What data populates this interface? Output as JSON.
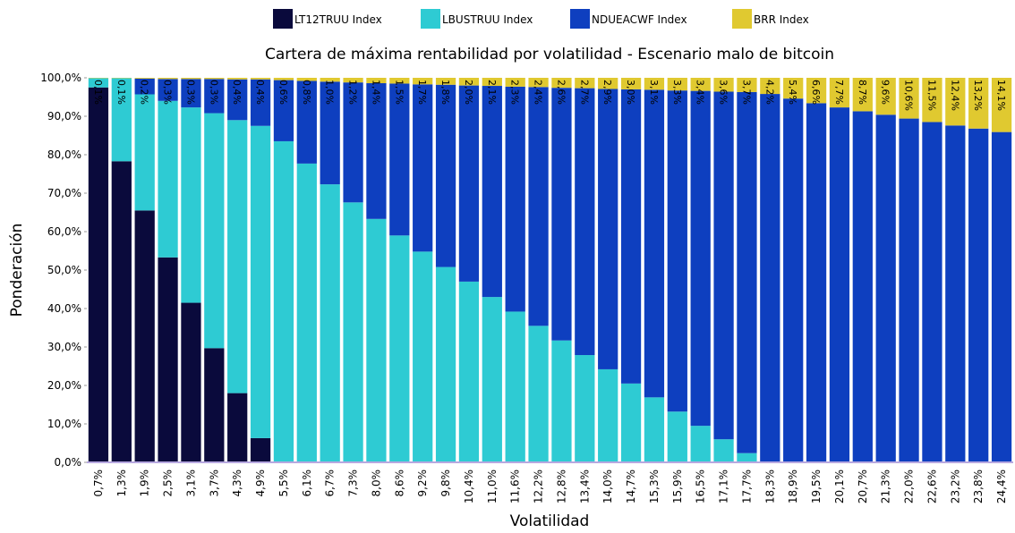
{
  "chart_data": {
    "type": "stacked_bar",
    "title": "Cartera de máxima rentabilidad por volatilidad - Escenario malo de bitcoin",
    "x_label": "Volatilidad",
    "y_label": "Ponderación",
    "categories": [
      "0,7%",
      "1,3%",
      "1,9%",
      "2,5%",
      "3,1%",
      "3,7%",
      "4,3%",
      "4,9%",
      "5,5%",
      "6,1%",
      "6,7%",
      "7,3%",
      "8,0%",
      "8,6%",
      "9,2%",
      "9,8%",
      "10,4%",
      "11,0%",
      "11,6%",
      "12,2%",
      "12,8%",
      "13,4%",
      "14,0%",
      "14,7%",
      "15,3%",
      "15,9%",
      "16,5%",
      "17,1%",
      "17,7%",
      "18,3%",
      "18,9%",
      "19,5%",
      "20,1%",
      "20,7%",
      "21,3%",
      "22,0%",
      "22,6%",
      "23,2%",
      "23,8%",
      "24,4%"
    ],
    "series": [
      {
        "name": "LT12TRUU Index",
        "color": "#0a0a3c",
        "values": [
          97.5,
          78.3,
          65.5,
          53.3,
          41.5,
          29.7,
          18,
          6.3,
          0,
          0,
          0,
          0,
          0,
          0,
          0,
          0,
          0,
          0,
          0,
          0,
          0,
          0,
          0,
          0,
          0,
          0,
          0,
          0,
          0,
          0,
          0,
          0,
          0,
          0,
          0,
          0,
          0,
          0,
          0,
          0
        ]
      },
      {
        "name": "LBUSTRUU Index",
        "color": "#2ecbd3",
        "values": [
          2.4,
          21.6,
          30.2,
          40.7,
          50.8,
          61.1,
          71,
          81.2,
          83.5,
          77.7,
          72.3,
          67.6,
          63.3,
          59,
          54.8,
          50.8,
          47,
          43,
          39.2,
          35.5,
          31.7,
          27.9,
          24.2,
          20.5,
          16.9,
          13.2,
          9.5,
          6,
          2.4,
          0,
          0,
          0,
          0,
          0,
          0,
          0,
          0,
          0,
          0,
          0
        ]
      },
      {
        "name": "NDUEACWF Index",
        "color": "#0e3fbf",
        "values": [
          0,
          0,
          4.1,
          5.7,
          7.4,
          8.9,
          10.6,
          12.1,
          15.9,
          21.5,
          26.7,
          31.2,
          35.3,
          39.5,
          43.5,
          47.4,
          51,
          54.9,
          58.5,
          62.1,
          65.7,
          69.4,
          72.9,
          76.5,
          80,
          83.5,
          87.1,
          90.4,
          93.9,
          95.8,
          94.6,
          93.4,
          92.3,
          91.3,
          90.4,
          89.4,
          88.5,
          87.6,
          86.8,
          85.9
        ]
      },
      {
        "name": "BRR Index",
        "color": "#e0c930",
        "values": [
          0.1,
          0.1,
          0.2,
          0.3,
          0.3,
          0.3,
          0.4,
          0.4,
          0.6,
          0.8,
          1.0,
          1.2,
          1.4,
          1.5,
          1.7,
          1.8,
          2.0,
          2.1,
          2.3,
          2.4,
          2.6,
          2.7,
          2.9,
          3.0,
          3.1,
          3.3,
          3.4,
          3.6,
          3.7,
          4.2,
          5.4,
          6.6,
          7.7,
          8.7,
          9.6,
          10.6,
          11.5,
          12.4,
          13.2,
          14.1
        ],
        "value_labels": [
          "0,1%",
          "0,1%",
          "0,2%",
          "0,3%",
          "0,3%",
          "0,3%",
          "0,4%",
          "0,4%",
          "0,6%",
          "0,8%",
          "1,0%",
          "1,2%",
          "1,4%",
          "1,5%",
          "1,7%",
          "1,8%",
          "2,0%",
          "2,1%",
          "2,3%",
          "2,4%",
          "2,6%",
          "2,7%",
          "2,9%",
          "3,0%",
          "3,1%",
          "3,3%",
          "3,4%",
          "3,6%",
          "3,7%",
          "4,2%",
          "5,4%",
          "6,6%",
          "7,7%",
          "8,7%",
          "9,6%",
          "10,6%",
          "11,5%",
          "12,4%",
          "13,2%",
          "14,1%"
        ]
      }
    ],
    "ylim": [
      0,
      100
    ],
    "yticks": [
      {
        "value": 0,
        "label": "0,0%"
      },
      {
        "value": 10,
        "label": "10,0%"
      },
      {
        "value": 20,
        "label": "20,0%"
      },
      {
        "value": 30,
        "label": "30,0%"
      },
      {
        "value": 40,
        "label": "40,0%"
      },
      {
        "value": 50,
        "label": "50,0%"
      },
      {
        "value": 60,
        "label": "60,0%"
      },
      {
        "value": 70,
        "label": "70,0%"
      },
      {
        "value": 80,
        "label": "80,0%"
      },
      {
        "value": 90,
        "label": "90,0%"
      },
      {
        "value": 100,
        "label": "100,0%"
      }
    ],
    "legend": "top"
  }
}
